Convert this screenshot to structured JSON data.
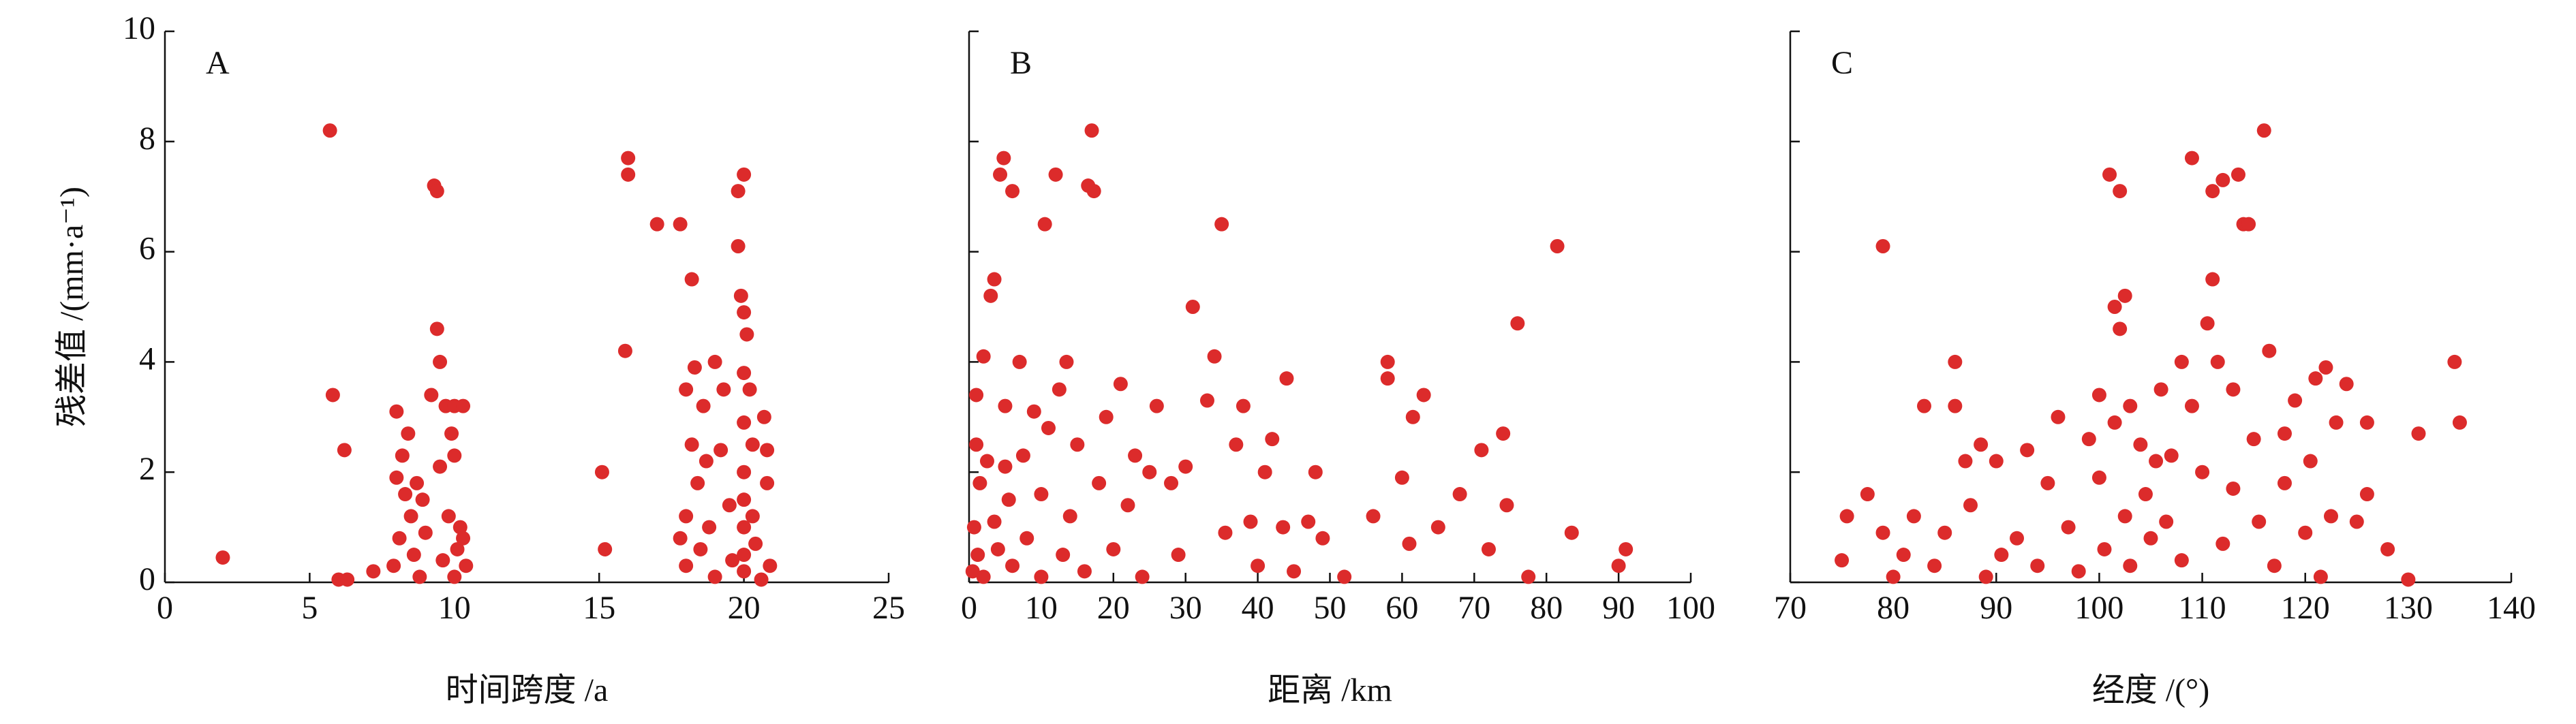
{
  "chart_data": [
    {
      "type": "scatter",
      "panel": "A",
      "xlabel": "时间跨度 /a",
      "ylabel": "残差值 /(mm·a⁻¹)",
      "color": "#dc2b2b",
      "xlim": [
        0,
        25
      ],
      "xticks": [
        0,
        5,
        10,
        15,
        20,
        25
      ],
      "ylim": [
        0,
        10
      ],
      "yticks": [
        0,
        2,
        4,
        6,
        8,
        10
      ],
      "x": [
        2,
        5.7,
        5.8,
        6,
        6.2,
        6.3,
        7.2,
        7.9,
        8,
        8,
        8.1,
        8.2,
        8.3,
        8.4,
        8.5,
        8.6,
        8.7,
        8.8,
        8.9,
        9,
        9.2,
        9.3,
        9.4,
        9.4,
        9.5,
        9.5,
        9.6,
        9.7,
        9.8,
        9.9,
        10,
        10,
        10,
        10.1,
        10.2,
        10.3,
        10.3,
        10.4,
        15.1,
        15.2,
        15.9,
        16,
        16,
        17,
        17.8,
        17.8,
        18,
        18,
        18,
        18.2,
        18.2,
        18.3,
        18.4,
        18.5,
        18.6,
        18.7,
        18.8,
        19,
        19,
        19.2,
        19.3,
        19.5,
        19.6,
        19.8,
        19.8,
        19.9,
        20,
        20,
        20,
        20,
        20,
        20,
        20,
        20,
        20,
        20.1,
        20.2,
        20.3,
        20.3,
        20.4,
        20.6,
        20.7,
        20.8,
        20.8,
        20.9
      ],
      "values": [
        0.45,
        8.2,
        3.4,
        0.05,
        2.4,
        0.05,
        0.2,
        0.3,
        3.1,
        1.9,
        0.8,
        2.3,
        1.6,
        2.7,
        1.2,
        0.5,
        1.8,
        0.1,
        1.5,
        0.9,
        3.4,
        7.2,
        7.1,
        4.6,
        2.1,
        4,
        0.4,
        3.2,
        1.2,
        2.7,
        3.2,
        2.3,
        0.1,
        0.6,
        1,
        3.2,
        0.8,
        0.3,
        2,
        0.6,
        4.2,
        7.7,
        7.4,
        6.5,
        6.5,
        0.8,
        3.5,
        1.2,
        0.3,
        5.5,
        2.5,
        3.9,
        1.8,
        0.6,
        3.2,
        2.2,
        1,
        4,
        0.1,
        2.4,
        3.5,
        1.4,
        0.4,
        7.1,
        6.1,
        5.2,
        4.9,
        7.4,
        3.8,
        2.9,
        2,
        1.5,
        1,
        0.5,
        0.2,
        4.5,
        3.5,
        2.5,
        1.2,
        0.7,
        0.05,
        3,
        2.4,
        1.8,
        0.3
      ]
    },
    {
      "type": "scatter",
      "panel": "B",
      "xlabel": "距离 /km",
      "color": "#dc2b2b",
      "xlim": [
        0,
        100
      ],
      "xticks": [
        0,
        10,
        20,
        30,
        40,
        50,
        60,
        70,
        80,
        90,
        100
      ],
      "ylim": [
        0,
        10
      ],
      "x": [
        0.5,
        0.7,
        1,
        1,
        1.2,
        1.5,
        2,
        2,
        2.5,
        3,
        3.5,
        3.5,
        4,
        4.3,
        4.8,
        5,
        5,
        5.5,
        6,
        6,
        7,
        7.5,
        8,
        9,
        10,
        10,
        10.5,
        11,
        12,
        12.5,
        13,
        13.5,
        14,
        15,
        16,
        16.5,
        17,
        17.3,
        18,
        19,
        20,
        21,
        22,
        23,
        24,
        25,
        26,
        28,
        29,
        30,
        31,
        33,
        34,
        35,
        35.5,
        37,
        38,
        39,
        40,
        41,
        42,
        43.5,
        44,
        45,
        47,
        48,
        49,
        52,
        56,
        58,
        58,
        60,
        61,
        61.5,
        63,
        65,
        68,
        71,
        72,
        74,
        74.5,
        76,
        77.5,
        81.5,
        83.5,
        90,
        91
      ],
      "values": [
        0.2,
        1,
        2.5,
        3.4,
        0.5,
        1.8,
        4.1,
        0.1,
        2.2,
        5.2,
        5.5,
        1.1,
        0.6,
        7.4,
        7.7,
        3.2,
        2.1,
        1.5,
        7.1,
        0.3,
        4,
        2.3,
        0.8,
        3.1,
        1.6,
        0.1,
        6.5,
        2.8,
        7.4,
        3.5,
        0.5,
        4,
        1.2,
        2.5,
        0.2,
        7.2,
        8.2,
        7.1,
        1.8,
        3,
        0.6,
        3.6,
        1.4,
        2.3,
        0.1,
        2,
        3.2,
        1.8,
        0.5,
        2.1,
        5,
        3.3,
        4.1,
        6.5,
        0.9,
        2.5,
        3.2,
        1.1,
        0.3,
        2,
        2.6,
        1,
        3.7,
        0.2,
        1.1,
        2,
        0.8,
        0.1,
        1.2,
        4,
        3.7,
        1.9,
        0.7,
        3,
        3.4,
        1,
        1.6,
        2.4,
        0.6,
        2.7,
        1.4,
        4.7,
        0.1,
        6.1,
        0.9,
        0.3,
        0.6
      ]
    },
    {
      "type": "scatter",
      "panel": "C",
      "xlabel": "经度 /(°)",
      "color": "#dc2b2b",
      "xlim": [
        70,
        140
      ],
      "xticks": [
        70,
        80,
        90,
        100,
        110,
        120,
        130,
        140
      ],
      "ylim": [
        0,
        10
      ],
      "x": [
        75,
        75.5,
        77.5,
        79,
        79,
        80,
        81,
        82,
        83,
        84,
        85,
        86,
        86,
        87,
        87.5,
        88.5,
        89,
        90,
        90.5,
        92,
        93,
        94,
        95,
        96,
        97,
        98,
        99,
        100,
        100,
        100.5,
        101,
        101.5,
        101.5,
        102,
        102,
        102.5,
        102.5,
        103,
        103,
        104,
        104.5,
        105,
        105.5,
        106,
        106.5,
        107,
        108,
        108,
        109,
        109,
        110,
        110.5,
        111,
        111,
        111.5,
        112,
        112,
        113,
        113,
        113.5,
        114,
        114.5,
        115,
        115.5,
        116,
        116.5,
        117,
        118,
        118,
        119,
        120,
        120.5,
        121,
        121.5,
        122,
        122.5,
        123,
        124,
        125,
        126,
        126,
        128,
        130,
        131,
        134.5,
        135
      ],
      "values": [
        0.4,
        1.2,
        1.6,
        6.1,
        0.9,
        0.1,
        0.5,
        1.2,
        3.2,
        0.3,
        0.9,
        4,
        3.2,
        2.2,
        1.4,
        2.5,
        0.1,
        2.2,
        0.5,
        0.8,
        2.4,
        0.3,
        1.8,
        3,
        1,
        0.2,
        2.6,
        3.4,
        1.9,
        0.6,
        7.4,
        5,
        2.9,
        4.6,
        7.1,
        5.2,
        1.2,
        0.3,
        3.2,
        2.5,
        1.6,
        0.8,
        2.2,
        3.5,
        1.1,
        2.3,
        0.4,
        4,
        7.7,
        3.2,
        2,
        4.7,
        5.5,
        7.1,
        4,
        0.7,
        7.3,
        3.5,
        1.7,
        7.4,
        6.5,
        6.5,
        2.6,
        1.1,
        8.2,
        4.2,
        0.3,
        2.7,
        1.8,
        3.3,
        0.9,
        2.2,
        3.7,
        0.1,
        3.9,
        1.2,
        2.9,
        3.6,
        1.1,
        1.6,
        2.9,
        0.6,
        0.05,
        2.7,
        4,
        2.9
      ]
    }
  ]
}
